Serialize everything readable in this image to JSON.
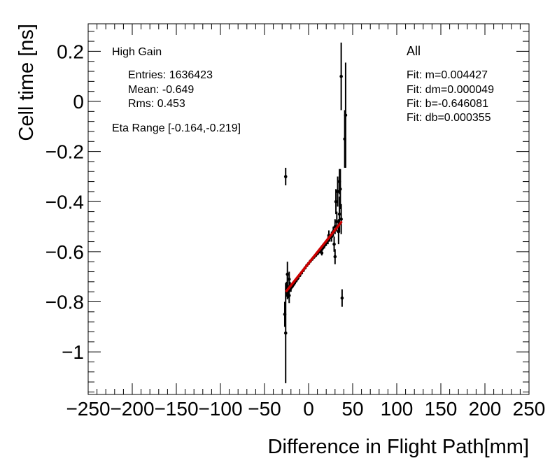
{
  "chart_data": {
    "type": "scatter",
    "xlabel": "Difference in Flight Path[mm]",
    "ylabel": "Cell time [ns]",
    "xlim": [
      -250,
      250
    ],
    "ylim": [
      -1.17,
      0.31
    ],
    "x_ticks": [
      {
        "value": -250,
        "label": "−250"
      },
      {
        "value": -200,
        "label": "−200"
      },
      {
        "value": -150,
        "label": "−150"
      },
      {
        "value": -100,
        "label": "−100"
      },
      {
        "value": -50,
        "label": "−50"
      },
      {
        "value": 0,
        "label": "0"
      },
      {
        "value": 50,
        "label": "50"
      },
      {
        "value": 100,
        "label": "100"
      },
      {
        "value": 150,
        "label": "150"
      },
      {
        "value": 200,
        "label": "200"
      },
      {
        "value": 250,
        "label": "250"
      }
    ],
    "y_ticks": [
      {
        "value": 0.2,
        "label": "0.2"
      },
      {
        "value": 0,
        "label": "0"
      },
      {
        "value": -0.2,
        "label": "−0.2"
      },
      {
        "value": -0.4,
        "label": "−0.4"
      },
      {
        "value": -0.6,
        "label": "−0.6"
      },
      {
        "value": -0.8,
        "label": "−0.8"
      },
      {
        "value": -1,
        "label": "−1"
      }
    ],
    "grid": false,
    "annotations": {
      "gain": "High Gain",
      "entries": "Entries: 1636423",
      "mean": "Mean: -0.649",
      "rms": "Rms: 0.453",
      "eta_range": "Eta Range [-0.164,-0.219]",
      "selection": "All",
      "fit_m": "Fit: m=0.004427",
      "fit_dm": "Fit: dm=0.000049",
      "fit_b": "Fit: b=-0.646081",
      "fit_db": "Fit: db=0.000355"
    },
    "fit_line": {
      "slope": 0.004427,
      "intercept": -0.646081,
      "x_range": [
        -25,
        37
      ],
      "color": "#cc0000"
    },
    "points": [
      {
        "x": -27,
        "y": -0.85,
        "err": 0.05
      },
      {
        "x": -26,
        "y": -0.3,
        "err": 0.035
      },
      {
        "x": -26,
        "y": -0.925,
        "err": 0.2
      },
      {
        "x": -25,
        "y": -0.75,
        "err": 0.03
      },
      {
        "x": -24,
        "y": -0.74,
        "err": 0.05
      },
      {
        "x": -24,
        "y": -0.69,
        "err": 0.05
      },
      {
        "x": -23,
        "y": -0.76,
        "err": 0.025
      },
      {
        "x": -22,
        "y": -0.775,
        "err": 0.03
      },
      {
        "x": -22,
        "y": -0.71,
        "err": 0.03
      },
      {
        "x": -21,
        "y": -0.74,
        "err": 0.02
      },
      {
        "x": -20,
        "y": -0.745,
        "err": 0.015
      },
      {
        "x": -18,
        "y": -0.735,
        "err": 0.01
      },
      {
        "x": -16,
        "y": -0.725,
        "err": 0.01
      },
      {
        "x": -14,
        "y": -0.715,
        "err": 0.008
      },
      {
        "x": -12,
        "y": -0.705,
        "err": 0.008
      },
      {
        "x": -10,
        "y": -0.695,
        "err": 0.006
      },
      {
        "x": -8,
        "y": -0.685,
        "err": 0.006
      },
      {
        "x": -6,
        "y": -0.675,
        "err": 0.005
      },
      {
        "x": -4,
        "y": -0.665,
        "err": 0.005
      },
      {
        "x": -2,
        "y": -0.655,
        "err": 0.004
      },
      {
        "x": 0,
        "y": -0.647,
        "err": 0.004
      },
      {
        "x": 2,
        "y": -0.638,
        "err": 0.004
      },
      {
        "x": 4,
        "y": -0.63,
        "err": 0.004
      },
      {
        "x": 6,
        "y": -0.622,
        "err": 0.005
      },
      {
        "x": 8,
        "y": -0.615,
        "err": 0.005
      },
      {
        "x": 10,
        "y": -0.608,
        "err": 0.006
      },
      {
        "x": 12,
        "y": -0.6,
        "err": 0.007
      },
      {
        "x": 14,
        "y": -0.595,
        "err": 0.008
      },
      {
        "x": 15,
        "y": -0.605,
        "err": 0.01
      },
      {
        "x": 16,
        "y": -0.585,
        "err": 0.01
      },
      {
        "x": 18,
        "y": -0.575,
        "err": 0.012
      },
      {
        "x": 20,
        "y": -0.565,
        "err": 0.012
      },
      {
        "x": 22,
        "y": -0.555,
        "err": 0.015
      },
      {
        "x": 23,
        "y": -0.535,
        "err": 0.02
      },
      {
        "x": 24,
        "y": -0.545,
        "err": 0.015
      },
      {
        "x": 26,
        "y": -0.54,
        "err": 0.02
      },
      {
        "x": 28,
        "y": -0.52,
        "err": 0.02
      },
      {
        "x": 29,
        "y": -0.57,
        "err": 0.03
      },
      {
        "x": 30,
        "y": -0.5,
        "err": 0.03
      },
      {
        "x": 30,
        "y": -0.62,
        "err": 0.03
      },
      {
        "x": 31,
        "y": -0.4,
        "err": 0.05
      },
      {
        "x": 32,
        "y": -0.48,
        "err": 0.04
      },
      {
        "x": 33,
        "y": -0.36,
        "err": 0.06
      },
      {
        "x": 34,
        "y": -0.52,
        "err": 0.05
      },
      {
        "x": 35,
        "y": -0.32,
        "err": 0.05
      },
      {
        "x": 35,
        "y": -0.45,
        "err": 0.07
      },
      {
        "x": 36,
        "y": -0.35,
        "err": 0.08
      },
      {
        "x": 37,
        "y": -0.47,
        "err": 0.06
      },
      {
        "x": 37,
        "y": 0.1,
        "err": 0.135
      },
      {
        "x": 38,
        "y": -0.785,
        "err": 0.035
      },
      {
        "x": 41,
        "y": -0.15,
        "err": 0.115
      },
      {
        "x": 42,
        "y": -0.055,
        "err": 0.21
      }
    ]
  }
}
